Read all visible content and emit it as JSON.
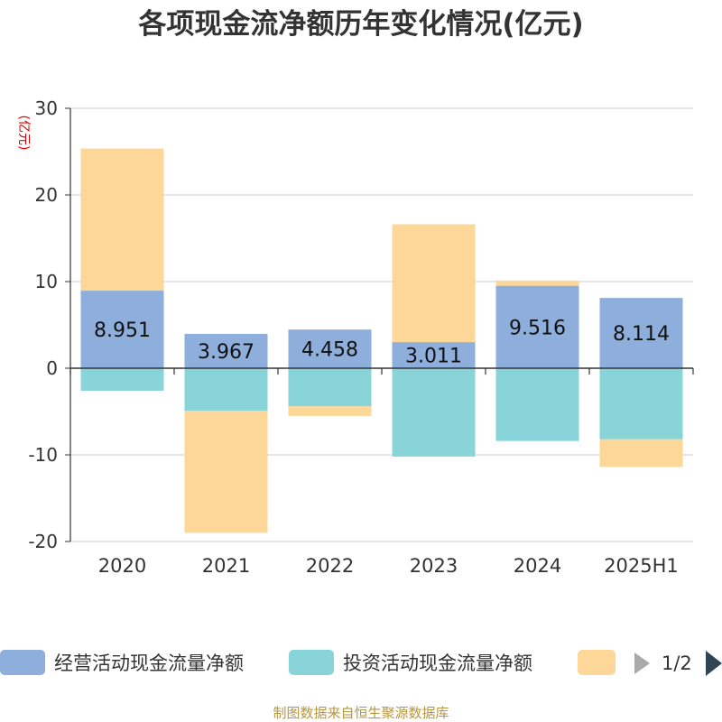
{
  "chart_data": {
    "type": "bar",
    "stacked": true,
    "title": "各项现金流净额历年变化情况(亿元)",
    "unit_label": "(亿元)",
    "categories": [
      "2020",
      "2021",
      "2022",
      "2023",
      "2024",
      "2025H1"
    ],
    "series": [
      {
        "name": "经营活动现金流量净额",
        "color": "#8eaedb",
        "values": [
          8.951,
          3.967,
          4.458,
          3.011,
          9.516,
          8.114
        ]
      },
      {
        "name": "投资活动现金流量净额",
        "color": "#88d4d8",
        "values": [
          -2.6,
          -4.9,
          -4.4,
          -10.2,
          -8.4,
          -8.2
        ]
      },
      {
        "name": "",
        "color": "#fdd798",
        "values": [
          16.4,
          -14.1,
          -1.1,
          13.6,
          0.6,
          -3.2
        ]
      }
    ],
    "data_labels": [
      "8.951",
      "3.967",
      "4.458",
      "3.011",
      "9.516",
      "8.114"
    ],
    "ylim": [
      -20,
      30
    ],
    "yticks": [
      30,
      20,
      10,
      0,
      -10,
      -20
    ],
    "grid": true,
    "legend_position": "bottom"
  },
  "legend": {
    "page_indicator": "1/2"
  },
  "source_text": "制图数据来自恒生聚源数据库"
}
